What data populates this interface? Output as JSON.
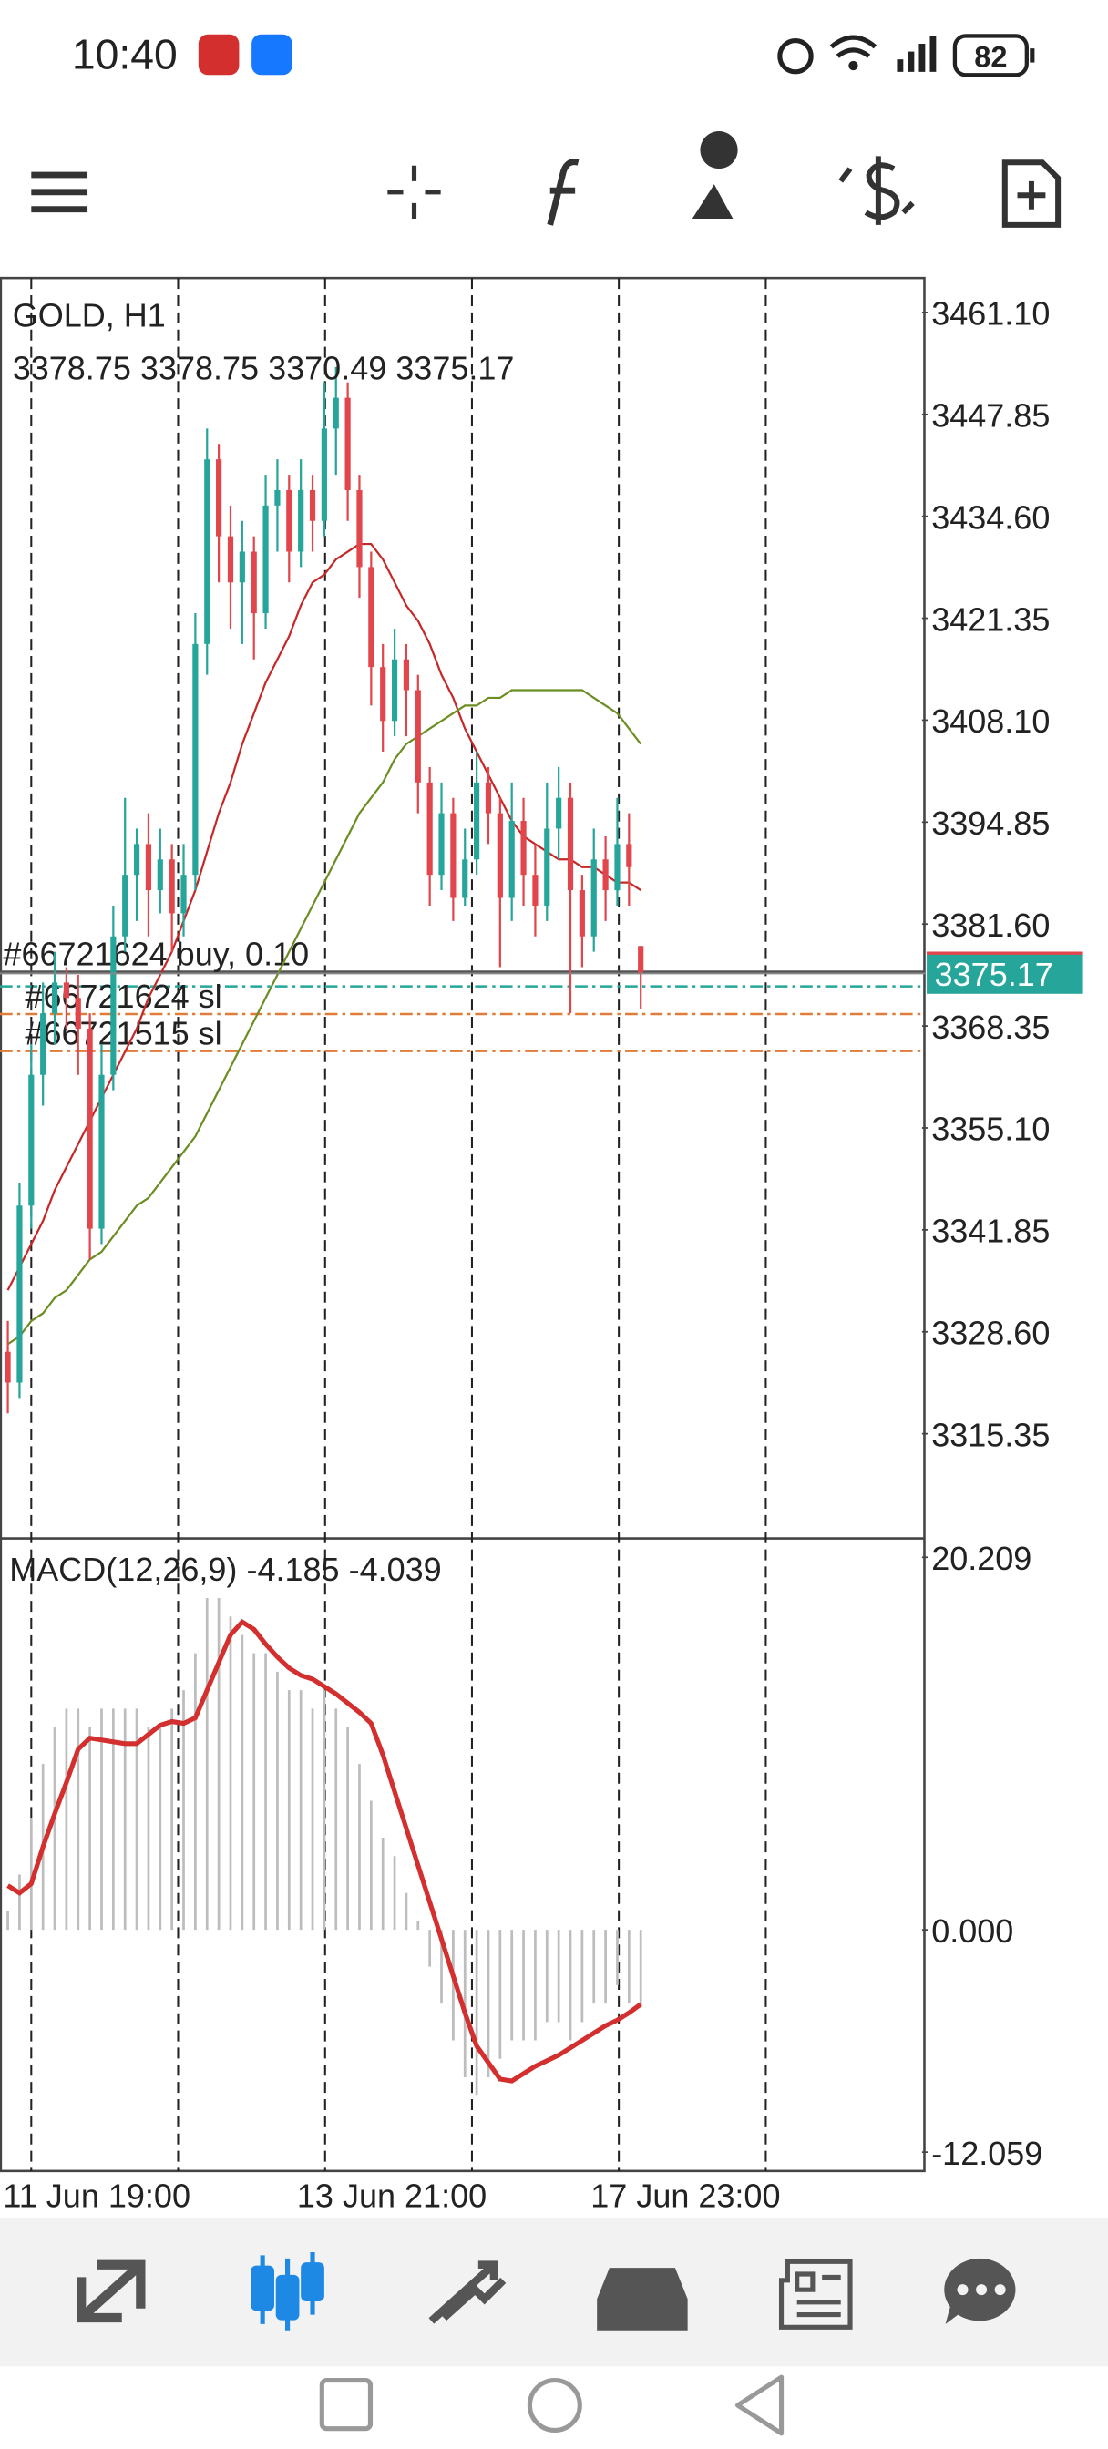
{
  "status_bar": {
    "time": "10:40",
    "battery": 82
  },
  "chart_data": [
    {
      "type": "candlestick",
      "title": "GOLD, H1",
      "bull_color": "#26a69a",
      "bear_color": "#e0464b",
      "candles": [
        [
          3326,
          3330,
          3318,
          3322
        ],
        [
          3322,
          3348,
          3320,
          3345
        ],
        [
          3345,
          3366,
          3342,
          3362
        ],
        [
          3362,
          3374,
          3358,
          3370
        ],
        [
          3370,
          3378,
          3366,
          3374
        ],
        [
          3374,
          3376,
          3368,
          3372
        ],
        [
          3372,
          3375,
          3362,
          3368
        ],
        [
          3368,
          3370,
          3338,
          3342
        ],
        [
          3342,
          3366,
          3340,
          3362
        ],
        [
          3362,
          3384,
          3360,
          3380
        ],
        [
          3380,
          3398,
          3378,
          3388
        ],
        [
          3388,
          3394,
          3382,
          3392
        ],
        [
          3392,
          3396,
          3380,
          3386
        ],
        [
          3386,
          3394,
          3383,
          3390
        ],
        [
          3390,
          3392,
          3378,
          3383
        ],
        [
          3383,
          3392,
          3380,
          3388
        ],
        [
          3388,
          3422,
          3386,
          3418
        ],
        [
          3418,
          3446,
          3414,
          3442
        ],
        [
          3442,
          3444,
          3426,
          3432
        ],
        [
          3432,
          3436,
          3420,
          3426
        ],
        [
          3426,
          3434,
          3418,
          3430
        ],
        [
          3430,
          3432,
          3416,
          3422
        ],
        [
          3422,
          3440,
          3420,
          3436
        ],
        [
          3436,
          3442,
          3430,
          3438
        ],
        [
          3438,
          3440,
          3426,
          3430
        ],
        [
          3430,
          3442,
          3428,
          3438
        ],
        [
          3438,
          3440,
          3430,
          3434
        ],
        [
          3434,
          3452,
          3432,
          3446
        ],
        [
          3446,
          3454,
          3440,
          3450
        ],
        [
          3450,
          3452,
          3434,
          3438
        ],
        [
          3438,
          3440,
          3424,
          3428
        ],
        [
          3428,
          3430,
          3410,
          3415
        ],
        [
          3415,
          3418,
          3404,
          3408
        ],
        [
          3408,
          3420,
          3406,
          3416
        ],
        [
          3416,
          3418,
          3406,
          3412
        ],
        [
          3412,
          3414,
          3396,
          3400
        ],
        [
          3400,
          3402,
          3384,
          3388
        ],
        [
          3388,
          3400,
          3386,
          3396
        ],
        [
          3396,
          3398,
          3382,
          3385
        ],
        [
          3385,
          3394,
          3384,
          3390
        ],
        [
          3390,
          3404,
          3388,
          3400
        ],
        [
          3400,
          3402,
          3392,
          3396
        ],
        [
          3396,
          3398,
          3376,
          3385
        ],
        [
          3385,
          3400,
          3382,
          3395
        ],
        [
          3395,
          3398,
          3384,
          3388
        ],
        [
          3388,
          3392,
          3380,
          3384
        ],
        [
          3384,
          3400,
          3382,
          3394
        ],
        [
          3394,
          3402,
          3390,
          3398
        ],
        [
          3398,
          3400,
          3370,
          3386
        ],
        [
          3386,
          3388,
          3376,
          3380
        ],
        [
          3380,
          3394,
          3378,
          3390
        ],
        [
          3390,
          3393,
          3382,
          3386
        ],
        [
          3386,
          3398,
          3384,
          3392
        ],
        [
          3392,
          3396,
          3384,
          3389
        ],
        [
          3378.75,
          3378.75,
          3370.49,
          3375.17
        ]
      ],
      "series": [
        {
          "color": "#c62828",
          "values": [
            3334,
            3337,
            3340,
            3343,
            3347,
            3350,
            3353,
            3356,
            3359,
            3362,
            3365,
            3368,
            3372,
            3375,
            3378,
            3382,
            3386,
            3391,
            3396,
            3400,
            3405,
            3409,
            3413,
            3416,
            3419,
            3423,
            3426,
            3427,
            3429,
            3430,
            3431,
            3431,
            3429,
            3426,
            3423,
            3421,
            3418,
            3414,
            3411,
            3407,
            3404,
            3401,
            3398,
            3395,
            3393,
            3392,
            3391,
            3390,
            3390,
            3389,
            3389,
            3388,
            3387,
            3387,
            3386
          ]
        },
        {
          "color": "#6b8e23",
          "values": [
            3327,
            3328,
            3330,
            3331,
            3333,
            3334,
            3336,
            3338,
            3339,
            3341,
            3343,
            3345,
            3346,
            3348,
            3350,
            3352,
            3354,
            3357,
            3360,
            3363,
            3366,
            3369,
            3372,
            3375,
            3378,
            3381,
            3384,
            3387,
            3390,
            3393,
            3396,
            3398,
            3400,
            3403,
            3405,
            3406,
            3407,
            3408,
            3409,
            3410,
            3410,
            3411,
            3411,
            3412,
            3412,
            3412,
            3412,
            3412,
            3412,
            3412,
            3411,
            3410,
            3409,
            3407,
            3405
          ]
        }
      ],
      "orders": [
        {
          "label": "#66721624 buy, 0.10",
          "price": 3375.4,
          "color": "#555555"
        },
        {
          "label": "#66721624 sl",
          "price": 3369.9,
          "color": "#e07b39"
        },
        {
          "label": "#66721515 sl",
          "price": 3365.1,
          "color": "#e07b39"
        }
      ],
      "lines": [
        {
          "price": 3373.5,
          "color": "#26a69a"
        }
      ],
      "ylim": [
        3301.74,
        3465.57
      ],
      "yticks": [
        {
          "value": 3461.1,
          "label": "3461.10"
        },
        3447.85,
        {
          "value": 3434.6,
          "label": "3434.60"
        },
        3421.35,
        {
          "value": 3408.1,
          "label": "3408.10"
        },
        3394.85,
        {
          "value": 3381.6,
          "label": "3381.60"
        },
        3368.35,
        {
          "value": 3355.1,
          "label": "3355.10"
        },
        3341.85,
        {
          "value": 3328.6,
          "label": "3328.60"
        },
        3315.35
      ],
      "xlim": [
        -0.667,
        78
      ],
      "xticks": [
        {
          "value": 2,
          "label": "11 Jun 19:00"
        },
        {
          "value": 14.53,
          "label": null
        },
        {
          "value": 27.07,
          "label": "13 Jun 21:00"
        },
        {
          "value": 39.6,
          "label": null
        },
        {
          "value": 52.13,
          "label": "17 Jun 23:00"
        },
        {
          "value": 64.67,
          "label": null
        }
      ]
    },
    {
      "type": "macd",
      "title": "MACD(12,26,9)",
      "histogram": {
        "color": "#bdbdbd",
        "values": [
          1,
          3,
          6,
          9,
          11,
          12,
          12,
          11,
          12,
          12,
          12,
          12,
          11,
          11,
          12,
          13,
          15,
          18,
          18,
          17,
          16,
          15,
          15,
          14,
          13,
          13,
          12,
          13,
          12,
          11,
          9,
          7,
          5,
          4,
          2,
          0.5,
          -2,
          -4,
          -6,
          -8,
          -9,
          -8,
          -7,
          -6,
          -6,
          -6,
          -5,
          -5,
          -6,
          -5,
          -4,
          -4,
          -3,
          -4,
          -4.185
        ]
      },
      "signal_line": {
        "color": "#d32f2f",
        "values": [
          2.4,
          2.0,
          2.5,
          4.5,
          6.3,
          8,
          9.8,
          10.4,
          10.3,
          10.2,
          10.1,
          10.1,
          10.6,
          11.1,
          11.3,
          11.2,
          11.5,
          13,
          14.5,
          16,
          16.7,
          16.3,
          15.5,
          14.8,
          14.2,
          13.8,
          13.6,
          13.2,
          12.8,
          12.3,
          11.8,
          11.2,
          9.5,
          7.5,
          5.5,
          3.5,
          1.5,
          -0.5,
          -2.5,
          -4.5,
          -6.3,
          -7.2,
          -8.1,
          -8.2,
          -7.8,
          -7.4,
          -7.1,
          -6.8,
          -6.4,
          -6,
          -5.6,
          -5.2,
          -4.9,
          -4.5,
          -4.039
        ]
      },
      "ylim": [
        -13.083,
        21.233
      ],
      "yticks": [
        20.209,
        {
          "value": 0,
          "label": "0.000"
        },
        -12.059
      ]
    }
  ]
}
